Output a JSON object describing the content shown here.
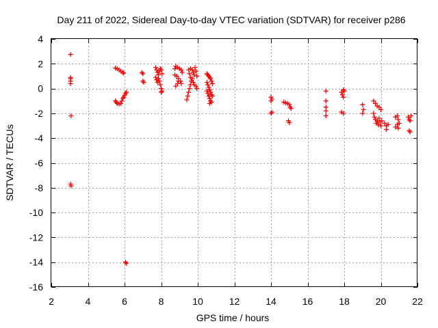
{
  "chart_data": {
    "type": "scatter",
    "title": "Day 211 of 2022, Sidereal Day-to-day VTEC variation (SDTVAR) for receiver p286",
    "xlabel": "GPS time / hours",
    "ylabel": "SDTVAR / TECUs",
    "xlim": [
      2,
      22
    ],
    "ylim": [
      -16,
      4
    ],
    "xticks": [
      2,
      4,
      6,
      8,
      10,
      12,
      14,
      16,
      18,
      20,
      22
    ],
    "yticks": [
      4,
      2,
      0,
      -2,
      -4,
      -6,
      -8,
      -10,
      -12,
      -14,
      -16
    ],
    "grid": true,
    "marker": "+",
    "color": "#ff0000",
    "series": [
      {
        "name": "SDTVAR",
        "points": [
          [
            3.05,
            2.75
          ],
          [
            3.05,
            0.9
          ],
          [
            3.05,
            0.8
          ],
          [
            3.05,
            0.6
          ],
          [
            3.05,
            0.4
          ],
          [
            3.08,
            -2.2
          ],
          [
            3.05,
            -7.7
          ],
          [
            3.08,
            -7.85
          ],
          [
            5.5,
            1.65
          ],
          [
            5.6,
            1.6
          ],
          [
            5.7,
            1.5
          ],
          [
            5.8,
            1.4
          ],
          [
            5.9,
            1.3
          ],
          [
            5.95,
            1.25
          ],
          [
            5.5,
            -1.0
          ],
          [
            5.55,
            -1.1
          ],
          [
            5.6,
            -1.2
          ],
          [
            5.7,
            -1.25
          ],
          [
            5.8,
            -1.2
          ],
          [
            5.85,
            -1.0
          ],
          [
            5.9,
            -0.8
          ],
          [
            5.95,
            -0.7
          ],
          [
            6.0,
            -0.55
          ],
          [
            6.05,
            -0.4
          ],
          [
            6.1,
            -0.3
          ],
          [
            6.05,
            -14.0
          ],
          [
            6.1,
            -14.1
          ],
          [
            6.95,
            1.3
          ],
          [
            7.0,
            1.2
          ],
          [
            7.0,
            0.6
          ],
          [
            7.05,
            0.5
          ],
          [
            7.7,
            1.7
          ],
          [
            7.75,
            1.5
          ],
          [
            7.8,
            1.3
          ],
          [
            7.85,
            1.1
          ],
          [
            7.9,
            1.4
          ],
          [
            7.95,
            1.6
          ],
          [
            8.0,
            1.5
          ],
          [
            8.05,
            1.2
          ],
          [
            7.7,
            0.9
          ],
          [
            7.75,
            0.7
          ],
          [
            7.8,
            0.5
          ],
          [
            7.85,
            0.8
          ],
          [
            7.9,
            0.6
          ],
          [
            7.95,
            0.3
          ],
          [
            8.0,
            0.0
          ],
          [
            8.05,
            -0.2
          ],
          [
            8.0,
            -0.3
          ],
          [
            8.75,
            1.6
          ],
          [
            8.8,
            1.8
          ],
          [
            8.9,
            1.7
          ],
          [
            9.0,
            1.6
          ],
          [
            9.1,
            1.5
          ],
          [
            9.15,
            1.3
          ],
          [
            8.75,
            1.1
          ],
          [
            8.85,
            1.0
          ],
          [
            8.95,
            0.8
          ],
          [
            9.05,
            0.6
          ],
          [
            9.1,
            0.4
          ],
          [
            8.8,
            0.2
          ],
          [
            8.9,
            0.4
          ],
          [
            8.95,
            0.6
          ],
          [
            9.5,
            1.5
          ],
          [
            9.55,
            1.2
          ],
          [
            9.6,
            0.9
          ],
          [
            9.65,
            0.6
          ],
          [
            9.6,
            0.3
          ],
          [
            9.55,
            0.0
          ],
          [
            9.5,
            -0.3
          ],
          [
            9.45,
            -0.6
          ],
          [
            9.4,
            -0.9
          ],
          [
            9.6,
            1.6
          ],
          [
            9.7,
            1.5
          ],
          [
            9.75,
            1.3
          ],
          [
            9.8,
            1.1
          ],
          [
            9.85,
            1.7
          ],
          [
            9.9,
            1.4
          ],
          [
            9.95,
            1.0
          ],
          [
            9.7,
            0.8
          ],
          [
            9.75,
            0.5
          ],
          [
            9.8,
            0.3
          ],
          [
            9.9,
            0.2
          ],
          [
            9.95,
            0.0
          ],
          [
            10.5,
            1.2
          ],
          [
            10.55,
            1.1
          ],
          [
            10.6,
            1.0
          ],
          [
            10.65,
            0.9
          ],
          [
            10.7,
            0.8
          ],
          [
            10.75,
            0.6
          ],
          [
            10.8,
            0.4
          ],
          [
            10.5,
            0.5
          ],
          [
            10.55,
            0.3
          ],
          [
            10.6,
            0.1
          ],
          [
            10.65,
            -0.1
          ],
          [
            10.7,
            -0.3
          ],
          [
            10.75,
            -0.5
          ],
          [
            10.8,
            -0.6
          ],
          [
            10.5,
            -0.2
          ],
          [
            10.55,
            -0.4
          ],
          [
            10.6,
            -0.6
          ],
          [
            10.65,
            -0.8
          ],
          [
            10.7,
            -1.0
          ],
          [
            10.75,
            -1.1
          ],
          [
            10.65,
            -1.2
          ],
          [
            14.0,
            -0.7
          ],
          [
            14.05,
            -0.85
          ],
          [
            14.0,
            -1.0
          ],
          [
            14.05,
            -1.9
          ],
          [
            14.0,
            -2.0
          ],
          [
            14.7,
            -1.1
          ],
          [
            14.8,
            -1.15
          ],
          [
            14.9,
            -1.2
          ],
          [
            15.0,
            -1.3
          ],
          [
            15.05,
            -1.5
          ],
          [
            15.1,
            -1.6
          ],
          [
            14.95,
            -2.6
          ],
          [
            15.0,
            -2.75
          ],
          [
            17.0,
            -0.2
          ],
          [
            17.0,
            -1.0
          ],
          [
            17.0,
            -1.5
          ],
          [
            17.0,
            -1.8
          ],
          [
            17.0,
            -2.2
          ],
          [
            17.85,
            -1.9
          ],
          [
            17.95,
            -2.0
          ],
          [
            17.85,
            -0.3
          ],
          [
            17.9,
            -0.5
          ],
          [
            17.95,
            -0.7
          ],
          [
            18.0,
            -0.2
          ],
          [
            17.95,
            -0.1
          ],
          [
            19.0,
            -1.3
          ],
          [
            19.05,
            -1.7
          ],
          [
            19.0,
            -2.0
          ],
          [
            19.6,
            -1.0
          ],
          [
            19.7,
            -1.2
          ],
          [
            19.8,
            -1.4
          ],
          [
            19.9,
            -1.5
          ],
          [
            20.0,
            -1.7
          ],
          [
            19.6,
            -2.0
          ],
          [
            19.65,
            -2.3
          ],
          [
            19.7,
            -2.5
          ],
          [
            19.75,
            -2.8
          ],
          [
            19.8,
            -2.6
          ],
          [
            19.85,
            -2.9
          ],
          [
            19.9,
            -2.4
          ],
          [
            19.95,
            -2.7
          ],
          [
            20.0,
            -3.0
          ],
          [
            20.05,
            -2.6
          ],
          [
            20.2,
            -2.8
          ],
          [
            20.3,
            -3.0
          ],
          [
            20.4,
            -2.9
          ],
          [
            20.3,
            -3.3
          ],
          [
            20.8,
            -2.3
          ],
          [
            20.9,
            -2.2
          ],
          [
            20.95,
            -2.5
          ],
          [
            20.8,
            -3.1
          ],
          [
            20.9,
            -2.9
          ],
          [
            21.0,
            -2.8
          ],
          [
            20.95,
            -3.2
          ],
          [
            21.5,
            -2.3
          ],
          [
            21.55,
            -2.5
          ],
          [
            21.6,
            -2.6
          ],
          [
            21.55,
            -3.4
          ],
          [
            21.6,
            -3.5
          ],
          [
            21.65,
            -2.2
          ]
        ]
      }
    ]
  }
}
